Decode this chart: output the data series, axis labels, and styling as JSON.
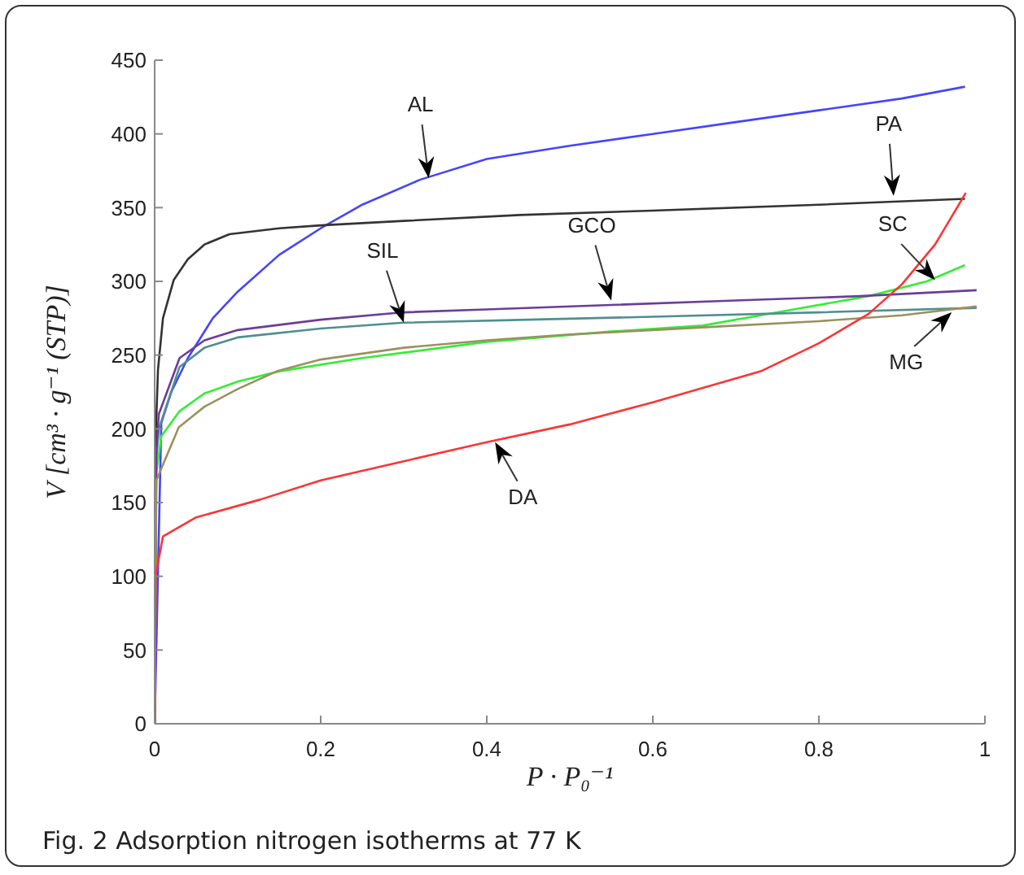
{
  "chart_data": {
    "type": "line",
    "xlabel": "P · P₀⁻¹",
    "ylabel": "V [cm³ · g⁻¹ (STP)]",
    "xlim": [
      0,
      1
    ],
    "xticks": [
      0,
      0.2,
      0.4,
      0.6,
      0.8,
      1
    ],
    "ylim": [
      0,
      450
    ],
    "yticks": [
      0,
      50,
      100,
      150,
      200,
      250,
      300,
      350,
      400,
      450
    ],
    "grid": false,
    "legend": false,
    "series": [
      {
        "color": "#4444ff",
        "x": [
          0,
          0.008,
          0.02,
          0.04,
          0.07,
          0.1,
          0.15,
          0.2,
          0.25,
          0.32,
          0.4,
          0.5,
          0.6,
          0.7,
          0.8,
          0.9,
          0.976
        ],
        "values": [
          0,
          204,
          225,
          248,
          275,
          293,
          318,
          336,
          352,
          369,
          383,
          392,
          400,
          408,
          416,
          424,
          432
        ]
      },
      {
        "color": "#333333",
        "x": [
          0,
          0.001,
          0.004,
          0.01,
          0.023,
          0.04,
          0.06,
          0.09,
          0.15,
          0.2,
          0.3,
          0.44,
          0.6,
          0.8,
          0.976
        ],
        "values": [
          0,
          190,
          240,
          275,
          301,
          315,
          325,
          332,
          336,
          338,
          341,
          345,
          348,
          352,
          356
        ]
      },
      {
        "color": "#33ee33",
        "x": [
          0,
          0.002,
          0.008,
          0.03,
          0.06,
          0.1,
          0.15,
          0.25,
          0.4,
          0.55,
          0.66,
          0.76,
          0.86,
          0.93,
          0.976
        ],
        "values": [
          0,
          170,
          195,
          212,
          224,
          232,
          239,
          248,
          259,
          266,
          270,
          280,
          290,
          300,
          311
        ]
      },
      {
        "color": "#4f8f8f",
        "x": [
          0,
          0.002,
          0.005,
          0.03,
          0.06,
          0.1,
          0.2,
          0.3,
          0.45,
          0.6,
          0.8,
          0.99
        ],
        "values": [
          0,
          180,
          200,
          242,
          255,
          262,
          268,
          272,
          274,
          276,
          279,
          282
        ]
      },
      {
        "color": "#6a3d9a",
        "x": [
          0,
          0.002,
          0.005,
          0.03,
          0.06,
          0.1,
          0.2,
          0.3,
          0.4,
          0.55,
          0.7,
          0.85,
          0.99
        ],
        "values": [
          0,
          185,
          210,
          248,
          260,
          267,
          274,
          279,
          281,
          284,
          287,
          290,
          294
        ]
      },
      {
        "color": "#9b9060",
        "x": [
          0,
          0.002,
          0.029,
          0.06,
          0.1,
          0.147,
          0.2,
          0.3,
          0.4,
          0.5,
          0.6,
          0.7,
          0.8,
          0.9,
          0.99
        ],
        "values": [
          0,
          165,
          201,
          215,
          227,
          239,
          247,
          255,
          260,
          264,
          267,
          270,
          273,
          277,
          283
        ]
      },
      {
        "color": "#ff3333",
        "x": [
          0,
          0.001,
          0.01,
          0.05,
          0.127,
          0.2,
          0.3,
          0.4,
          0.5,
          0.6,
          0.73,
          0.8,
          0.86,
          0.9,
          0.94,
          0.977
        ],
        "values": [
          0,
          100,
          127,
          140,
          152,
          165,
          178,
          191,
          203,
          218,
          239,
          258,
          278,
          298,
          325,
          360
        ]
      }
    ],
    "annotations": [
      {
        "text": "AL",
        "x": 0.33,
        "y": 370
      },
      {
        "text": "PA",
        "x": 0.89,
        "y": 358
      },
      {
        "text": "SC",
        "x": 0.94,
        "y": 301
      },
      {
        "text": "SIL",
        "x": 0.3,
        "y": 272
      },
      {
        "text": "GCO",
        "x": 0.55,
        "y": 287
      },
      {
        "text": "MG",
        "x": 0.96,
        "y": 279
      },
      {
        "text": "DA",
        "x": 0.41,
        "y": 191
      },
      "Fig. 2 Adsorption nitrogen isotherms at 77 K"
    ]
  }
}
